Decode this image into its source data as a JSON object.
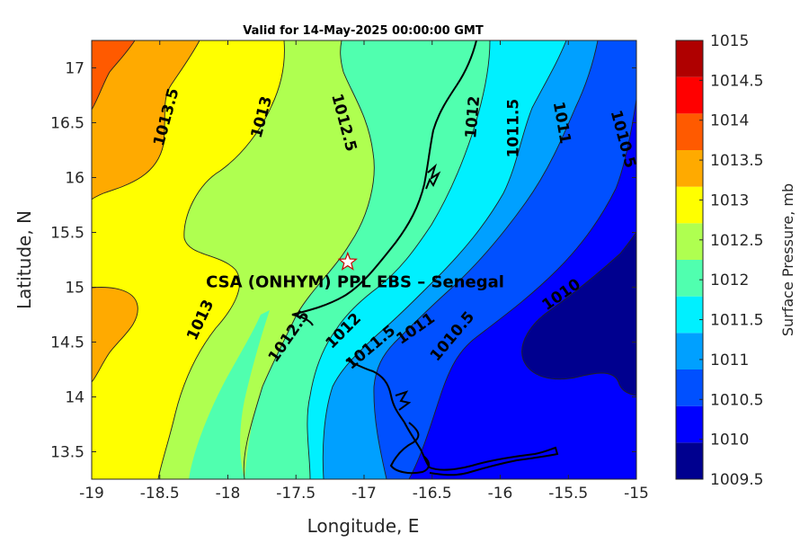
{
  "title": "Valid for 14-May-2025 00:00:00 GMT",
  "xlabel": "Longitude, E",
  "ylabel": "Latitude, N",
  "colorbar": {
    "label": "Surface Pressure, mb",
    "levels": [
      1009.5,
      1010,
      1010.5,
      1011,
      1011.5,
      1012,
      1012.5,
      1013,
      1013.5,
      1014,
      1014.5,
      1015
    ],
    "tick_labels": [
      "1009.5",
      "1010",
      "1010.5",
      "1011",
      "1011.5",
      "1012",
      "1012.5",
      "1013",
      "1013.5",
      "1014",
      "1014.5",
      "1015"
    ],
    "colors": [
      "#00008f",
      "#0000ff",
      "#0050ff",
      "#00a0ff",
      "#00f0ff",
      "#50ffaf",
      "#afff50",
      "#ffff00",
      "#ffaa00",
      "#ff5a00",
      "#ff0000",
      "#af0000"
    ]
  },
  "chart_data": {
    "type": "contour",
    "xlim": [
      -19,
      -15
    ],
    "ylim": [
      13.25,
      17.25
    ],
    "x_ticks": [
      -19,
      -18.5,
      -18,
      -17.5,
      -17,
      -16.5,
      -16,
      -15.5,
      -15
    ],
    "x_tick_labels": [
      "-19",
      "-18.5",
      "-18",
      "-17.5",
      "-17",
      "-16.5",
      "-16",
      "-15.5",
      "-15"
    ],
    "y_ticks": [
      13.5,
      14,
      14.5,
      15,
      15.5,
      16,
      16.5,
      17
    ],
    "y_tick_labels": [
      "13.5",
      "14",
      "14.5",
      "15",
      "15.5",
      "16",
      "16.5",
      "17"
    ],
    "contour_labels": [
      {
        "text": "1013.5",
        "lon": -18.45,
        "lat": 16.55
      },
      {
        "text": "1013",
        "lon": -17.75,
        "lat": 16.55
      },
      {
        "text": "1012.5",
        "lon": -17.15,
        "lat": 16.5
      },
      {
        "text": "1012",
        "lon": -16.2,
        "lat": 16.55
      },
      {
        "text": "1011.5",
        "lon": -15.9,
        "lat": 16.45
      },
      {
        "text": "1011",
        "lon": -15.55,
        "lat": 16.5
      },
      {
        "text": "1010.5",
        "lon": -15.1,
        "lat": 16.35
      },
      {
        "text": "1013",
        "lon": -18.2,
        "lat": 14.7
      },
      {
        "text": "1012.5",
        "lon": -17.55,
        "lat": 14.55
      },
      {
        "text": "1012",
        "lon": -17.15,
        "lat": 14.6
      },
      {
        "text": "1011.5",
        "lon": -16.95,
        "lat": 14.45
      },
      {
        "text": "1011",
        "lon": -16.62,
        "lat": 14.62
      },
      {
        "text": "1010.5",
        "lon": -16.35,
        "lat": 14.55
      },
      {
        "text": "1010",
        "lon": -15.55,
        "lat": 14.93
      }
    ],
    "station": {
      "name": "CSA (ONHYM) PPL EBS  – Senegal",
      "lon": -17.12,
      "lat": 15.23
    }
  }
}
